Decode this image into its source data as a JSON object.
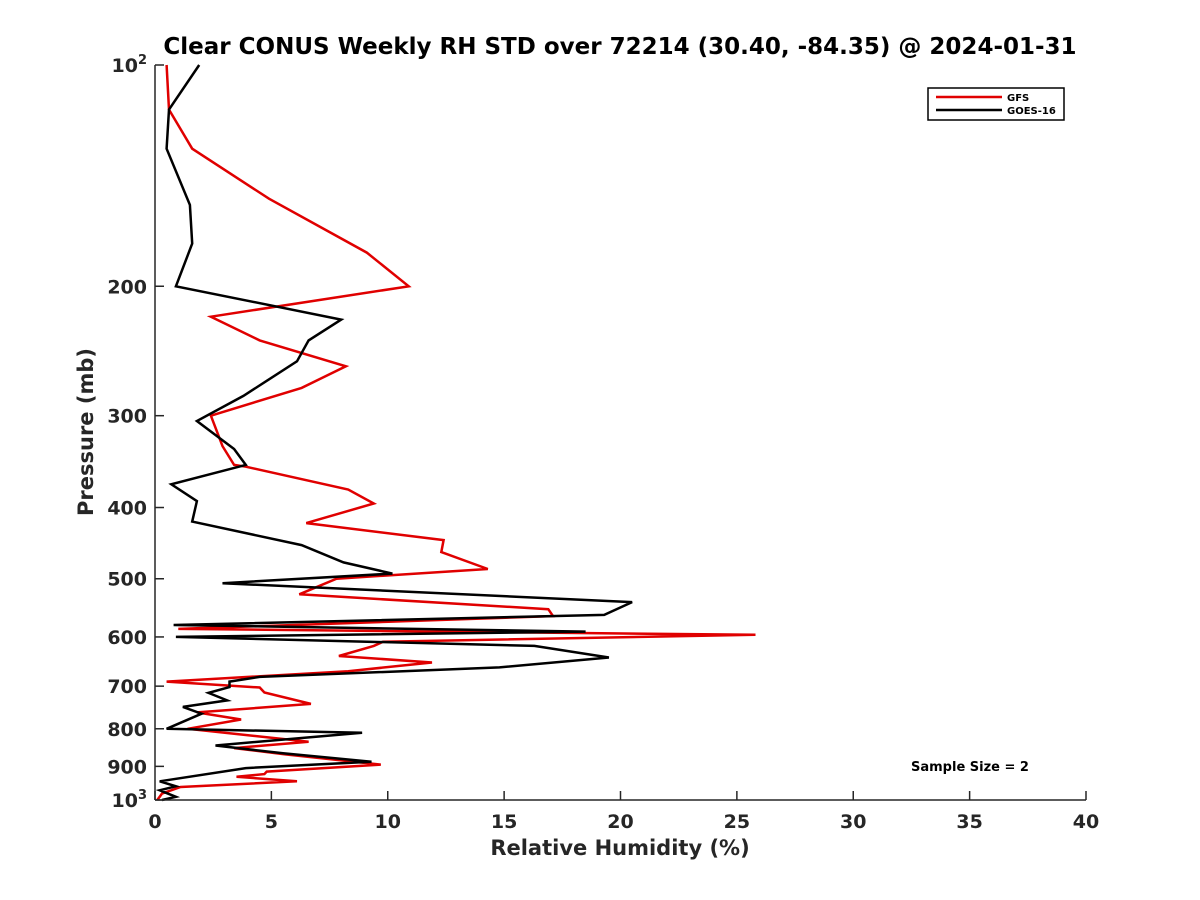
{
  "chart_data": {
    "type": "line",
    "title": "Clear CONUS Weekly RH STD over 72214 (30.40, -84.35) @ 2024-01-31",
    "xlabel": "Relative Humidity (%)",
    "ylabel": "Pressure (mb)",
    "xlim": [
      0,
      40
    ],
    "ylim": [
      100,
      1000
    ],
    "yscale": "log",
    "yreverse": true,
    "x_ticks": [
      0,
      5,
      10,
      15,
      20,
      25,
      30,
      35,
      40
    ],
    "x_tick_labels": [
      "0",
      "5",
      "10",
      "15",
      "20",
      "25",
      "30",
      "35",
      "40"
    ],
    "y_ticks": [
      100,
      200,
      300,
      400,
      500,
      600,
      700,
      800,
      900,
      1000
    ],
    "y_tick_labels": [
      {
        "base": "10",
        "sup": "2"
      },
      {
        "base": "200",
        "sup": ""
      },
      {
        "base": "300",
        "sup": ""
      },
      {
        "base": "400",
        "sup": ""
      },
      {
        "base": "500",
        "sup": ""
      },
      {
        "base": "600",
        "sup": ""
      },
      {
        "base": "700",
        "sup": ""
      },
      {
        "base": "800",
        "sup": ""
      },
      {
        "base": "900",
        "sup": ""
      },
      {
        "base": "10",
        "sup": "3"
      }
    ],
    "legend_position": "top-right",
    "annotation": "Sample Size = 2",
    "series": [
      {
        "name": "GFS",
        "color": "#e00000",
        "points": [
          [
            0.5,
            100
          ],
          [
            0.6,
            115
          ],
          [
            1.6,
            130
          ],
          [
            4.9,
            152
          ],
          [
            9.1,
            180
          ],
          [
            10.9,
            200
          ],
          [
            2.4,
            220
          ],
          [
            4.5,
            237
          ],
          [
            8.2,
            257
          ],
          [
            6.3,
            275
          ],
          [
            2.4,
            300
          ],
          [
            2.9,
            330
          ],
          [
            3.4,
            350
          ],
          [
            3.9,
            352
          ],
          [
            8.3,
            378
          ],
          [
            9.4,
            395
          ],
          [
            6.5,
            420
          ],
          [
            12.4,
            443
          ],
          [
            12.3,
            460
          ],
          [
            14.3,
            485
          ],
          [
            7.8,
            500
          ],
          [
            6.2,
            525
          ],
          [
            16.9,
            550
          ],
          [
            17.1,
            562
          ],
          [
            1.0,
            585
          ],
          [
            25.8,
            596
          ],
          [
            9.8,
            609
          ],
          [
            9.4,
            617
          ],
          [
            7.9,
            637
          ],
          [
            11.9,
            650
          ],
          [
            8.3,
            668
          ],
          [
            0.5,
            690
          ],
          [
            4.5,
            703
          ],
          [
            4.7,
            714
          ],
          [
            6.7,
            740
          ],
          [
            1.8,
            760
          ],
          [
            3.7,
            777
          ],
          [
            1.4,
            800
          ],
          [
            6.6,
            833
          ],
          [
            3.4,
            850
          ],
          [
            5.6,
            867
          ],
          [
            9.7,
            895
          ],
          [
            4.8,
            915
          ],
          [
            4.7,
            922
          ],
          [
            3.5,
            930
          ],
          [
            6.1,
            943
          ],
          [
            1.1,
            960
          ],
          [
            0.3,
            980
          ],
          [
            0.1,
            1000
          ]
        ]
      },
      {
        "name": "GOES-16",
        "color": "#000000",
        "points": [
          [
            1.9,
            100
          ],
          [
            0.6,
            115
          ],
          [
            0.5,
            130
          ],
          [
            1.5,
            155
          ],
          [
            1.6,
            175
          ],
          [
            0.9,
            200
          ],
          [
            8.0,
            222
          ],
          [
            6.6,
            237
          ],
          [
            6.1,
            253
          ],
          [
            3.8,
            282
          ],
          [
            1.8,
            305
          ],
          [
            3.4,
            333
          ],
          [
            3.9,
            350
          ],
          [
            0.7,
            372
          ],
          [
            1.8,
            392
          ],
          [
            1.6,
            418
          ],
          [
            6.3,
            450
          ],
          [
            8.1,
            475
          ],
          [
            10.2,
            492
          ],
          [
            2.9,
            507
          ],
          [
            20.5,
            538
          ],
          [
            19.3,
            560
          ],
          [
            0.8,
            578
          ],
          [
            18.5,
            590
          ],
          [
            0.9,
            600
          ],
          [
            16.3,
            617
          ],
          [
            19.5,
            640
          ],
          [
            14.8,
            660
          ],
          [
            4.5,
            680
          ],
          [
            3.2,
            690
          ],
          [
            3.2,
            702
          ],
          [
            2.3,
            715
          ],
          [
            3.1,
            732
          ],
          [
            1.2,
            747
          ],
          [
            2.0,
            763
          ],
          [
            0.5,
            800
          ],
          [
            8.9,
            810
          ],
          [
            2.6,
            843
          ],
          [
            5.5,
            864
          ],
          [
            9.3,
            887
          ],
          [
            3.9,
            905
          ],
          [
            0.2,
            943
          ],
          [
            0.9,
            958
          ],
          [
            0.2,
            970
          ],
          [
            0.9,
            990
          ],
          [
            0.3,
            1000
          ]
        ]
      }
    ]
  }
}
